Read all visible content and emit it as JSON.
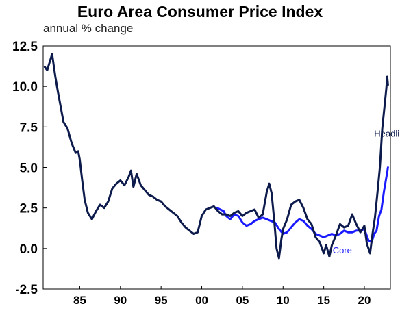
{
  "chart_data": {
    "type": "line",
    "title": "Euro Area Consumer Price Index",
    "subtitle": "annual % change",
    "xlabel": "",
    "ylabel": "",
    "xlim": [
      1980.5,
      2023.2
    ],
    "ylim": [
      -2.5,
      12.5
    ],
    "y_ticks": [
      12.5,
      10.0,
      7.5,
      5.0,
      2.5,
      0.0,
      -2.5
    ],
    "y_tick_labels": [
      "12.5",
      "10.0",
      "7.5",
      "5.0",
      "2.5",
      "0.0",
      "-2.5"
    ],
    "x_ticks": [
      1985,
      1990,
      1995,
      2000,
      2005,
      2010,
      2015,
      2020
    ],
    "x_tick_labels": [
      "85",
      "90",
      "95",
      "00",
      "05",
      "10",
      "15",
      "20"
    ],
    "grid": false,
    "colors": {
      "headline": "#0d1b4c",
      "core": "#1a1aff"
    },
    "series": [
      {
        "name": "Headline",
        "label_position": [
          2021.2,
          6.9
        ],
        "x": [
          1980.7,
          1981.0,
          1981.3,
          1981.6,
          1981.8,
          1982.0,
          1982.3,
          1982.6,
          1983.0,
          1983.5,
          1984.0,
          1984.5,
          1984.8,
          1985.0,
          1985.3,
          1985.6,
          1986.0,
          1986.5,
          1987.0,
          1987.5,
          1988.0,
          1988.5,
          1989.0,
          1989.5,
          1990.0,
          1990.5,
          1991.0,
          1991.3,
          1991.6,
          1992.0,
          1992.5,
          1993.0,
          1993.5,
          1994.0,
          1994.5,
          1995.0,
          1995.5,
          1996.0,
          1996.5,
          1997.0,
          1997.5,
          1998.0,
          1998.5,
          1999.0,
          1999.5,
          2000.0,
          2000.5,
          2001.0,
          2001.5,
          2002.0,
          2002.5,
          2003.0,
          2003.5,
          2004.0,
          2004.5,
          2005.0,
          2005.5,
          2006.0,
          2006.5,
          2007.0,
          2007.5,
          2008.0,
          2008.3,
          2008.6,
          2008.9,
          2009.2,
          2009.5,
          2009.8,
          2010.0,
          2010.5,
          2011.0,
          2011.5,
          2012.0,
          2012.5,
          2013.0,
          2013.5,
          2014.0,
          2014.5,
          2015.0,
          2015.3,
          2015.7,
          2016.0,
          2016.5,
          2017.0,
          2017.5,
          2018.0,
          2018.5,
          2019.0,
          2019.5,
          2020.0,
          2020.3,
          2020.7,
          2021.0,
          2021.3,
          2021.6,
          2021.9,
          2022.2,
          2022.5,
          2022.7,
          2022.8,
          2022.9
        ],
        "y": [
          11.2,
          11.0,
          11.5,
          12.0,
          11.3,
          10.6,
          9.7,
          8.9,
          7.8,
          7.4,
          6.5,
          5.9,
          6.0,
          5.5,
          4.2,
          3.0,
          2.2,
          1.8,
          2.3,
          2.7,
          2.5,
          2.9,
          3.7,
          4.0,
          4.2,
          3.9,
          4.4,
          4.8,
          3.8,
          4.6,
          3.9,
          3.6,
          3.3,
          3.2,
          3.0,
          2.9,
          2.6,
          2.4,
          2.2,
          2.0,
          1.6,
          1.3,
          1.1,
          0.9,
          1.0,
          2.0,
          2.4,
          2.5,
          2.6,
          2.3,
          2.1,
          2.1,
          2.0,
          2.2,
          2.3,
          2.0,
          2.2,
          2.3,
          2.4,
          1.9,
          2.1,
          3.5,
          4.0,
          3.4,
          1.8,
          0.0,
          -0.6,
          0.6,
          1.2,
          1.8,
          2.7,
          2.9,
          3.0,
          2.5,
          1.8,
          1.5,
          0.7,
          0.4,
          -0.3,
          0.2,
          -0.5,
          0.2,
          0.8,
          1.5,
          1.3,
          1.4,
          2.1,
          1.5,
          1.0,
          1.4,
          0.3,
          -0.3,
          0.9,
          1.9,
          3.4,
          5.0,
          7.4,
          8.9,
          9.9,
          10.6,
          10.1
        ]
      },
      {
        "name": "Core",
        "label_position": [
          2016.1,
          -0.3
        ],
        "x": [
          2001.9,
          2002.3,
          2002.7,
          2003.0,
          2003.5,
          2004.0,
          2004.5,
          2005.0,
          2005.5,
          2006.0,
          2006.5,
          2007.0,
          2007.5,
          2008.0,
          2008.5,
          2009.0,
          2009.5,
          2010.0,
          2010.5,
          2011.0,
          2011.5,
          2012.0,
          2012.5,
          2013.0,
          2013.5,
          2014.0,
          2014.5,
          2015.0,
          2015.5,
          2016.0,
          2016.5,
          2017.0,
          2017.5,
          2018.0,
          2018.5,
          2019.0,
          2019.5,
          2020.0,
          2020.5,
          2020.9,
          2021.2,
          2021.5,
          2021.8,
          2022.1,
          2022.4,
          2022.6,
          2022.8,
          2022.9
        ],
        "y": [
          2.5,
          2.4,
          2.3,
          2.0,
          1.8,
          2.1,
          2.0,
          1.6,
          1.4,
          1.5,
          1.7,
          1.8,
          1.9,
          1.8,
          1.7,
          1.6,
          1.2,
          0.9,
          1.0,
          1.3,
          1.6,
          1.8,
          1.7,
          1.4,
          1.2,
          0.9,
          0.8,
          0.7,
          0.8,
          0.9,
          0.8,
          0.9,
          1.1,
          1.0,
          1.0,
          1.1,
          1.1,
          1.2,
          0.5,
          0.4,
          0.9,
          1.1,
          2.0,
          2.4,
          3.5,
          4.1,
          4.7,
          5.0
        ]
      }
    ]
  }
}
